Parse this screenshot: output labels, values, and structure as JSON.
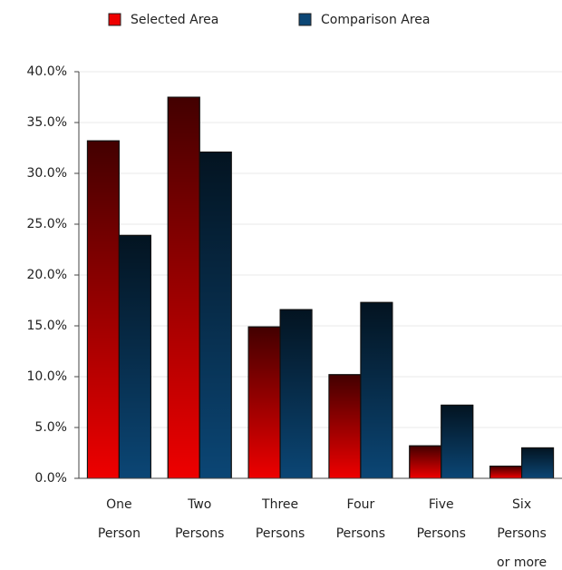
{
  "chart_data": {
    "type": "bar",
    "categories": [
      [
        "One",
        "Person"
      ],
      [
        "Two",
        "Persons"
      ],
      [
        "Three",
        "Persons"
      ],
      [
        "Four",
        "Persons"
      ],
      [
        "Five",
        "Persons"
      ],
      [
        "Six",
        "Persons",
        "or more"
      ]
    ],
    "series": [
      {
        "name": "Selected Area",
        "color": "#ee0000",
        "values": [
          33.2,
          37.5,
          14.9,
          10.2,
          3.2,
          1.2
        ]
      },
      {
        "name": "Comparison Area",
        "color": "#0b4675",
        "values": [
          23.9,
          32.1,
          16.6,
          17.3,
          7.2,
          3.0
        ]
      }
    ],
    "ylim": [
      0,
      40
    ],
    "yticks": [
      {
        "value": 0,
        "label": "0.0%"
      },
      {
        "value": 5,
        "label": "5.0%"
      },
      {
        "value": 10,
        "label": "10.0%"
      },
      {
        "value": 15,
        "label": "15.0%"
      },
      {
        "value": 20,
        "label": "20.0%"
      },
      {
        "value": 25,
        "label": "25.0%"
      },
      {
        "value": 30,
        "label": "30.0%"
      },
      {
        "value": 35,
        "label": "35.0%"
      },
      {
        "value": 40,
        "label": "40.0%"
      }
    ],
    "grid": true,
    "legend": "top"
  }
}
